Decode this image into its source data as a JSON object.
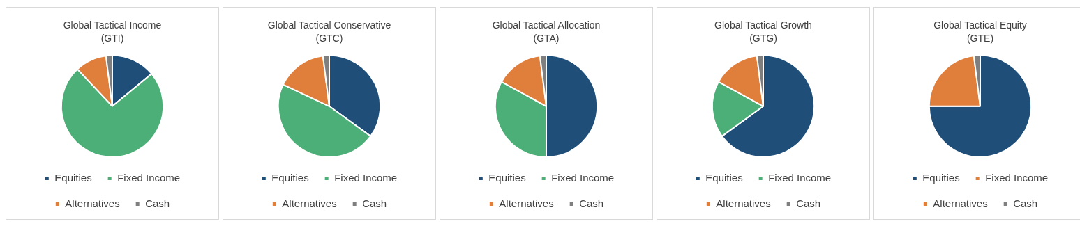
{
  "chart_data": [
    {
      "type": "pie",
      "title": "Global Tactical Income",
      "subtitle": "(GTI)",
      "categories": [
        "Equities",
        "Fixed Income",
        "Alternatives",
        "Cash"
      ],
      "values": [
        14,
        74,
        10,
        2
      ],
      "colors": [
        "#1f4e79",
        "#4caf78",
        "#e07e3c",
        "#7f7f7f"
      ],
      "legend": "bottom"
    },
    {
      "type": "pie",
      "title": "Global Tactical Conservative",
      "subtitle": "(GTC)",
      "categories": [
        "Equities",
        "Fixed Income",
        "Alternatives",
        "Cash"
      ],
      "values": [
        35,
        47,
        16,
        2
      ],
      "colors": [
        "#1f4e79",
        "#4caf78",
        "#e07e3c",
        "#7f7f7f"
      ],
      "legend": "bottom"
    },
    {
      "type": "pie",
      "title": "Global Tactical Allocation",
      "subtitle": "(GTA)",
      "categories": [
        "Equities",
        "Fixed Income",
        "Alternatives",
        "Cash"
      ],
      "values": [
        50,
        33,
        15,
        2
      ],
      "colors": [
        "#1f4e79",
        "#4caf78",
        "#e07e3c",
        "#7f7f7f"
      ],
      "legend": "bottom"
    },
    {
      "type": "pie",
      "title": "Global Tactical Growth",
      "subtitle": "(GTG)",
      "categories": [
        "Equities",
        "Fixed Income",
        "Alternatives",
        "Cash"
      ],
      "values": [
        65,
        18,
        15,
        2
      ],
      "colors": [
        "#1f4e79",
        "#4caf78",
        "#e07e3c",
        "#7f7f7f"
      ],
      "legend": "bottom"
    },
    {
      "type": "pie",
      "title": "Global Tactical Equity",
      "subtitle": "(GTE)",
      "categories": [
        "Equities",
        "Fixed Income",
        "Alternatives",
        "Cash"
      ],
      "values": [
        75,
        0,
        23,
        2
      ],
      "colors": [
        "#1f4e79",
        "#e07e3c",
        "#e07e3c",
        "#7f7f7f"
      ],
      "legend": "bottom"
    }
  ]
}
